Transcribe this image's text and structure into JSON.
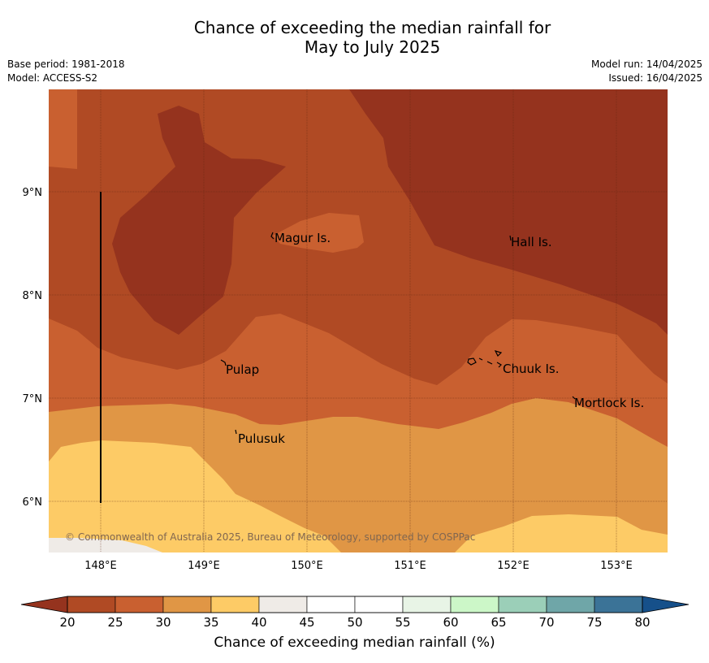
{
  "header": {
    "title_line1": "Chance of exceeding the median rainfall for",
    "title_line2": "May to July 2025",
    "base_period": "Base period: 1981-2018",
    "model": "Model: ACCESS-S2",
    "model_run": "Model run: 14/04/2025",
    "issued": "Issued: 16/04/2025"
  },
  "map": {
    "lat_labels": [
      "9°N",
      "8°N",
      "7°N",
      "6°N"
    ],
    "lon_labels": [
      "148°E",
      "149°E",
      "150°E",
      "151°E",
      "152°E",
      "153°E"
    ],
    "places": [
      "Magur Is.",
      "Hall Is.",
      "Pulap",
      "Chuuk Is.",
      "Mortlock Is.",
      "Pulusuk"
    ],
    "copyright": "© Commonwealth of Australia 2025, Bureau of Meteorology, supported by COSPPac",
    "colors": {
      "20-25": "#b04a24",
      "below-20": "#95331e",
      "25-30": "#c96030",
      "30-35": "#e09645",
      "35-40": "#fdcb66",
      "40-45": "#efebe7"
    }
  },
  "legend": {
    "ticks": [
      "20",
      "25",
      "30",
      "35",
      "40",
      "45",
      "50",
      "55",
      "60",
      "65",
      "70",
      "75",
      "80"
    ],
    "colors": [
      "#b04a24",
      "#c96030",
      "#e09645",
      "#fdcb66",
      "#efebe7",
      "#ffffff",
      "#ffffff",
      "#e8f4e6",
      "#ccf7c8",
      "#9bcfb8",
      "#6fa6a8",
      "#3b7397"
    ],
    "under_color": "#95331e",
    "over_color": "#16508a",
    "label": "Chance of exceeding median rainfall (%)"
  }
}
